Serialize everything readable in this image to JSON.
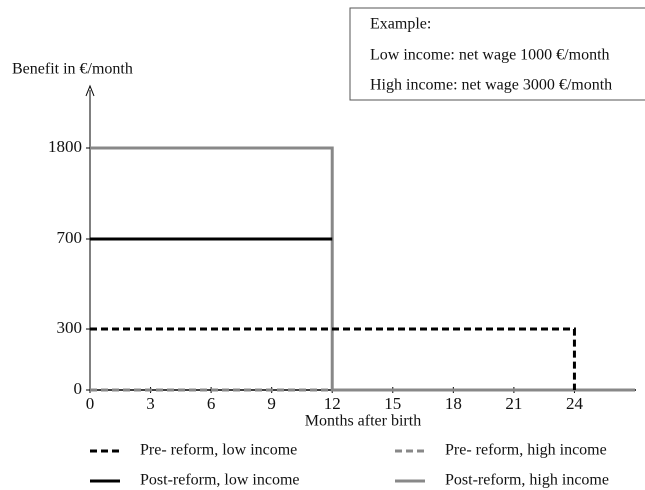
{
  "chart_data": {
    "type": "line",
    "y_label": "Benefit in €/month",
    "x_label": "Months after birth",
    "example": {
      "title": "Example:",
      "lines": [
        "Low income:  net wage 1000 €/month",
        "High income:  net wage 3000 €/month"
      ]
    },
    "xlim": [
      0,
      27
    ],
    "xticks": [
      0,
      3,
      6,
      9,
      12,
      15,
      18,
      21,
      24
    ],
    "ylim": [
      0,
      1800
    ],
    "yticks": [
      0,
      300,
      700,
      1800
    ],
    "series": [
      {
        "name": "Pre- reform, low income",
        "color": "#000000",
        "dashed": true,
        "x": [
          0,
          24,
          24
        ],
        "values": [
          300,
          300,
          0
        ]
      },
      {
        "name": "Pre- reform, high income",
        "color": "#888888",
        "dashed": true,
        "x": [
          0,
          12
        ],
        "values": [
          0,
          0
        ]
      },
      {
        "name": "Post-reform, low income",
        "color": "#000000",
        "dashed": false,
        "x": [
          0,
          12
        ],
        "values": [
          700,
          700
        ]
      },
      {
        "name": "Post-reform, high income",
        "color": "#888888",
        "dashed": false,
        "x": [
          0,
          12,
          12,
          27
        ],
        "values": [
          1800,
          1800,
          0,
          0
        ]
      }
    ]
  }
}
